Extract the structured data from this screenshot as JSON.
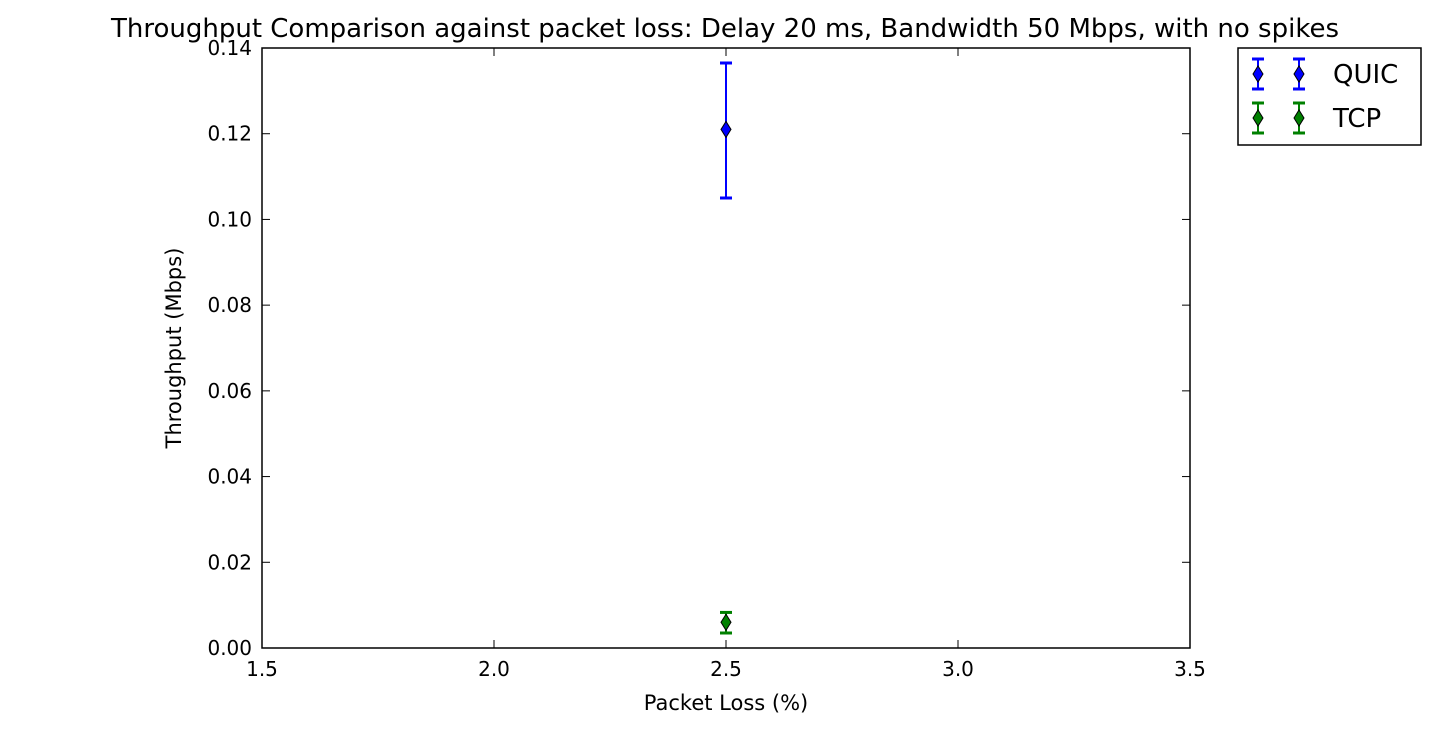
{
  "chart_data": {
    "type": "scatter",
    "title": "Throughput Comparison against packet loss: Delay 20 ms, Bandwidth 50 Mbps, with no spikes",
    "xlabel": "Packet Loss (%)",
    "ylabel": "Throughput (Mbps)",
    "xlim": [
      1.5,
      3.5
    ],
    "ylim": [
      0.0,
      0.14
    ],
    "xticks": [
      "1.5",
      "2.0",
      "2.5",
      "3.0",
      "3.5"
    ],
    "yticks": [
      "0.00",
      "0.02",
      "0.04",
      "0.06",
      "0.08",
      "0.10",
      "0.12",
      "0.14"
    ],
    "grid": false,
    "legend_position": "outside-top-right",
    "series": [
      {
        "name": "QUIC",
        "color": "#0000ff",
        "marker": "diamond",
        "x": [
          2.5
        ],
        "y": [
          0.121
        ],
        "yerr_low": [
          0.105
        ],
        "yerr_high": [
          0.1365
        ]
      },
      {
        "name": "TCP",
        "color": "#008000",
        "marker": "diamond",
        "x": [
          2.5
        ],
        "y": [
          0.006
        ],
        "yerr_low": [
          0.0035
        ],
        "yerr_high": [
          0.0083
        ]
      }
    ]
  }
}
